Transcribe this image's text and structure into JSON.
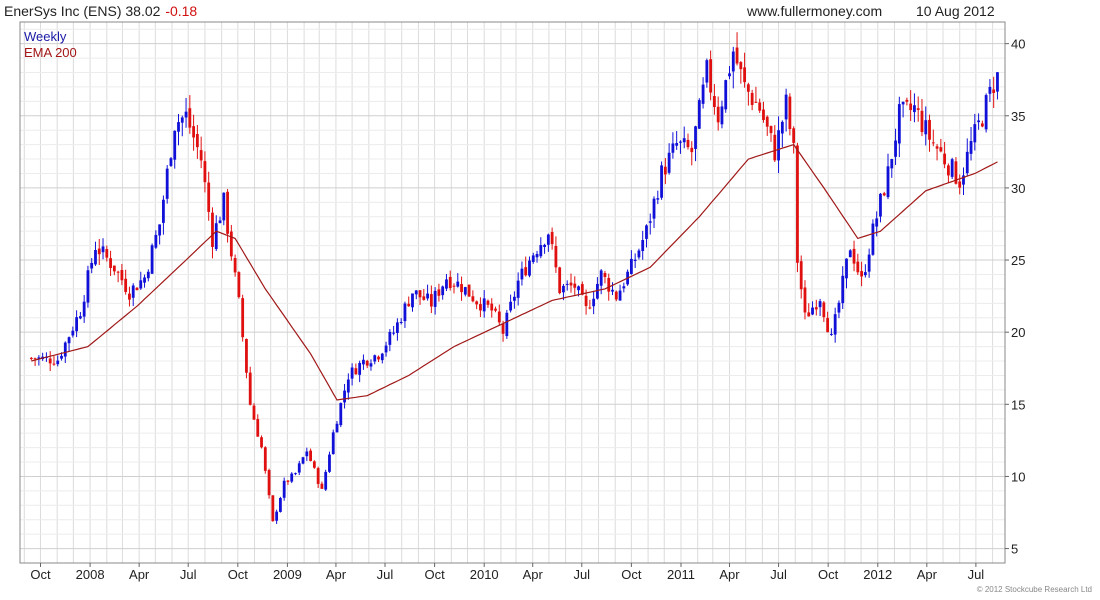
{
  "header": {
    "symbol": "EnerSys Inc (ENS)",
    "last_price": "38.02",
    "change": "-0.18",
    "website": "www.fullermoney.com",
    "date": "10 Aug 2012"
  },
  "footer": {
    "copyright": "© 2012 Stockcube Research Ltd"
  },
  "colors": {
    "up": "#1010d8",
    "down": "#e01010",
    "ema": "#a01818",
    "grid": "#dcdcdc"
  },
  "chart_data": {
    "type": "candlestick",
    "legend": [
      "Weekly",
      "EMA 200"
    ],
    "legend_position": "top-left",
    "y_axis_side": "right",
    "grid": true,
    "x_tick_labels": [
      "Oct",
      "2008",
      "Apr",
      "Jul",
      "Oct",
      "2009",
      "Apr",
      "Jul",
      "Oct",
      "2010",
      "Apr",
      "Jul",
      "Oct",
      "2011",
      "Apr",
      "Jul",
      "Oct",
      "2012",
      "Apr",
      "Jul"
    ],
    "y_ticks": [
      5,
      10,
      15,
      20,
      25,
      30,
      35,
      40
    ],
    "ylim": [
      4,
      41.5
    ],
    "weekly_close_anchors": [
      [
        "2007-09-14",
        18.2
      ],
      [
        "2007-11-02",
        18.1
      ],
      [
        "2007-12-14",
        21.5
      ],
      [
        "2008-01-11",
        26.0
      ],
      [
        "2008-02-15",
        24.5
      ],
      [
        "2008-03-14",
        22.8
      ],
      [
        "2008-04-11",
        23.8
      ],
      [
        "2008-05-09",
        27.5
      ],
      [
        "2008-06-06",
        34.5
      ],
      [
        "2008-06-27",
        35.0
      ],
      [
        "2008-07-25",
        32.0
      ],
      [
        "2008-08-15",
        26.5
      ],
      [
        "2008-09-05",
        29.0
      ],
      [
        "2008-10-03",
        22.0
      ],
      [
        "2008-10-24",
        15.0
      ],
      [
        "2008-11-14",
        12.0
      ],
      [
        "2008-12-05",
        6.8
      ],
      [
        "2008-12-26",
        9.5
      ],
      [
        "2009-01-16",
        10.2
      ],
      [
        "2009-02-06",
        11.8
      ],
      [
        "2009-03-06",
        9.0
      ],
      [
        "2009-03-27",
        13.0
      ],
      [
        "2009-04-24",
        17.0
      ],
      [
        "2009-05-22",
        18.0
      ],
      [
        "2009-06-19",
        18.5
      ],
      [
        "2009-07-17",
        20.0
      ],
      [
        "2009-08-21",
        22.8
      ],
      [
        "2009-09-25",
        22.0
      ],
      [
        "2009-10-23",
        23.8
      ],
      [
        "2009-11-20",
        23.2
      ],
      [
        "2009-12-18",
        22.2
      ],
      [
        "2010-01-15",
        21.5
      ],
      [
        "2010-02-05",
        20.0
      ],
      [
        "2010-03-05",
        23.5
      ],
      [
        "2010-04-02",
        25.5
      ],
      [
        "2010-04-30",
        27.0
      ],
      [
        "2010-05-21",
        23.0
      ],
      [
        "2010-06-18",
        23.2
      ],
      [
        "2010-07-09",
        21.5
      ],
      [
        "2010-08-06",
        24.0
      ],
      [
        "2010-09-03",
        22.5
      ],
      [
        "2010-10-01",
        24.5
      ],
      [
        "2010-10-29",
        27.0
      ],
      [
        "2010-11-26",
        31.0
      ],
      [
        "2010-12-24",
        33.0
      ],
      [
        "2011-01-21",
        32.5
      ],
      [
        "2011-02-18",
        38.0
      ],
      [
        "2011-03-11",
        35.0
      ],
      [
        "2011-04-08",
        39.5
      ],
      [
        "2011-04-29",
        37.0
      ],
      [
        "2011-05-27",
        35.5
      ],
      [
        "2011-06-24",
        32.5
      ],
      [
        "2011-07-15",
        35.8
      ],
      [
        "2011-07-29",
        32.5
      ],
      [
        "2011-08-05",
        25.0
      ],
      [
        "2011-08-19",
        21.0
      ],
      [
        "2011-09-16",
        22.5
      ],
      [
        "2011-10-07",
        19.5
      ],
      [
        "2011-10-21",
        22.0
      ],
      [
        "2011-11-11",
        26.0
      ],
      [
        "2011-12-02",
        23.5
      ],
      [
        "2011-12-23",
        27.0
      ],
      [
        "2012-01-20",
        31.0
      ],
      [
        "2012-02-10",
        35.0
      ],
      [
        "2012-03-09",
        35.5
      ],
      [
        "2012-04-06",
        33.5
      ],
      [
        "2012-05-04",
        32.0
      ],
      [
        "2012-06-01",
        30.5
      ],
      [
        "2012-06-22",
        33.0
      ],
      [
        "2012-07-13",
        35.0
      ],
      [
        "2012-08-10",
        38.02
      ]
    ],
    "ema200_anchors": [
      [
        "2007-09-14",
        18.0
      ],
      [
        "2007-12-28",
        19.0
      ],
      [
        "2008-03-28",
        21.8
      ],
      [
        "2008-06-27",
        25.0
      ],
      [
        "2008-08-22",
        27.0
      ],
      [
        "2008-09-26",
        26.5
      ],
      [
        "2008-11-21",
        23.0
      ],
      [
        "2009-02-13",
        18.5
      ],
      [
        "2009-04-03",
        15.3
      ],
      [
        "2009-05-29",
        15.6
      ],
      [
        "2009-08-14",
        17.0
      ],
      [
        "2009-11-06",
        19.0
      ],
      [
        "2010-02-05",
        20.6
      ],
      [
        "2010-05-07",
        22.2
      ],
      [
        "2010-08-13",
        23.0
      ],
      [
        "2010-11-05",
        24.5
      ],
      [
        "2011-02-04",
        28.0
      ],
      [
        "2011-05-06",
        32.0
      ],
      [
        "2011-07-29",
        33.0
      ],
      [
        "2011-09-23",
        30.0
      ],
      [
        "2011-11-25",
        26.5
      ],
      [
        "2012-01-06",
        27.0
      ],
      [
        "2012-03-30",
        29.8
      ],
      [
        "2012-06-29",
        31.0
      ],
      [
        "2012-08-10",
        31.8
      ]
    ]
  }
}
